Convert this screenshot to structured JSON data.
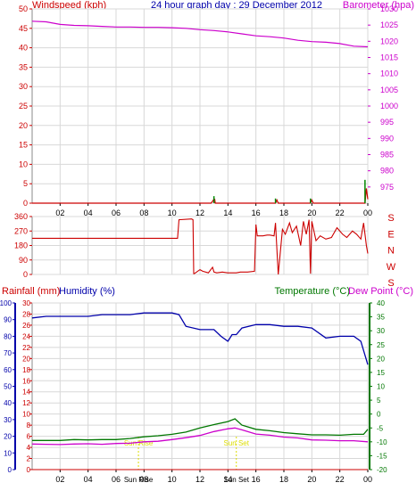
{
  "header": {
    "windspeed_label": "Windspeed (kph)",
    "date_title": "24 hour graph day : 29 December 2012",
    "barometer_label": "Barometer (hpa)"
  },
  "direction_panel": {
    "compass_labels": [
      "S",
      "E",
      "N",
      "W",
      "S"
    ]
  },
  "bottom_header": {
    "rainfall_label": "Rainfall (mm)",
    "humidity_label": "Humidity (%)",
    "temperature_label": "Temperature (°C)",
    "dewpoint_label": "Dew Point (°C)"
  },
  "sun_events": {
    "sunrise_label": "Sun Rise",
    "sunset_label": "Sun Set",
    "sunrise_hour": 7.6,
    "sunset_hour": 14.6,
    "axis_sunrise_label": "Sun Rise",
    "axis_sunset_label": "Sun Set"
  },
  "colors": {
    "border": "#888888",
    "grid": "#d8d8d8",
    "windspeed": "#cc0000",
    "barometer": "#cc00cc",
    "title": "#0000aa",
    "direction": "#cc0000",
    "rain": "#cc0000",
    "humidity": "#0000aa",
    "temperature": "#007700",
    "dewpoint": "#cc00cc",
    "gust": "#008800",
    "sun": "#dddd00"
  },
  "chart_data": [
    {
      "type": "line",
      "title": "24 hour graph day : 29 December 2012",
      "x_ticks": [
        "02",
        "04",
        "06",
        "08",
        "10",
        "12",
        "14",
        "16",
        "18",
        "20",
        "22",
        "00"
      ],
      "xlim": [
        0,
        24
      ],
      "ylabel_left": "Windspeed (kph)",
      "ylim_left": [
        0,
        50
      ],
      "yticks_left": [
        0,
        5,
        10,
        15,
        20,
        25,
        30,
        35,
        40,
        45,
        50
      ],
      "ylabel_right": "Barometer (hpa)",
      "ylim_right": [
        970,
        1030
      ],
      "yticks_right": [
        975,
        980,
        985,
        990,
        995,
        1000,
        1005,
        1010,
        1015,
        1020,
        1025,
        1030
      ],
      "series": [
        {
          "name": "Barometer (hpa)",
          "axis": "right",
          "x": [
            0,
            1,
            2,
            3,
            4,
            5,
            6,
            7,
            8,
            9,
            10,
            11,
            12,
            13,
            14,
            15,
            16,
            17,
            18,
            19,
            20,
            21,
            22,
            23,
            24
          ],
          "values": [
            1026.2,
            1026.0,
            1025.2,
            1024.9,
            1024.8,
            1024.6,
            1024.4,
            1024.4,
            1024.3,
            1024.3,
            1024.2,
            1024.0,
            1023.6,
            1023.3,
            1022.9,
            1022.3,
            1021.7,
            1021.4,
            1021.0,
            1020.3,
            1019.9,
            1019.7,
            1019.3,
            1018.5,
            1018.3
          ]
        },
        {
          "name": "Windspeed (kph)",
          "axis": "left",
          "x": [
            0,
            12.8,
            13.0,
            13.05,
            13.1,
            13.2,
            17.4,
            17.5,
            17.6,
            19.9,
            20.0,
            20.1,
            23.8,
            23.9,
            24
          ],
          "values": [
            0,
            0,
            1.0,
            1.0,
            0,
            0,
            0,
            0.8,
            0,
            0,
            0.8,
            0,
            0,
            3.8,
            1.0
          ]
        },
        {
          "name": "Gust",
          "axis": "left",
          "x": [
            13.0,
            13.1,
            17.4,
            17.5,
            19.9,
            20.0,
            23.8,
            23.9
          ],
          "values": [
            1.8,
            1.8,
            1.2,
            1.2,
            1.2,
            1.2,
            6.0,
            6.0
          ]
        }
      ]
    },
    {
      "type": "line",
      "x_ticks": [
        "02",
        "04",
        "06",
        "08",
        "10",
        "12",
        "14",
        "16",
        "18",
        "20",
        "22",
        "00"
      ],
      "xlim": [
        0,
        24
      ],
      "ylim": [
        0,
        360
      ],
      "yticks": [
        0,
        90,
        180,
        270,
        360
      ],
      "series": [
        {
          "name": "Wind direction",
          "x": [
            0,
            10.4,
            10.5,
            11.4,
            11.5,
            11.55,
            11.6,
            12.0,
            12.2,
            12.6,
            12.9,
            13.0,
            13.2,
            13.6,
            14.0,
            14.3,
            14.6,
            14.9,
            15.4,
            15.9,
            16.0,
            16.1,
            16.5,
            16.8,
            17.0,
            17.3,
            17.4,
            17.6,
            17.9,
            18.1,
            18.4,
            18.6,
            18.9,
            19.2,
            19.4,
            19.6,
            19.8,
            19.9,
            20.0,
            20.3,
            20.6,
            21.0,
            21.4,
            21.8,
            22.2,
            22.5,
            22.9,
            23.2,
            23.5,
            23.7,
            23.9,
            24.0
          ],
          "values": [
            225,
            225,
            340,
            345,
            340,
            5,
            5,
            30,
            20,
            10,
            45,
            15,
            10,
            15,
            10,
            10,
            10,
            15,
            15,
            20,
            310,
            240,
            240,
            245,
            245,
            240,
            320,
            0,
            280,
            250,
            320,
            260,
            300,
            180,
            330,
            250,
            340,
            5,
            330,
            210,
            240,
            220,
            230,
            290,
            250,
            230,
            270,
            250,
            220,
            320,
            180,
            130
          ]
        }
      ]
    },
    {
      "type": "line",
      "x_ticks": [
        "02",
        "04",
        "06",
        "08",
        "10",
        "12",
        "14",
        "16",
        "18",
        "20",
        "22",
        "00"
      ],
      "xlim": [
        0,
        24
      ],
      "ylabel_left_outer": "Rainfall (mm)",
      "ylim_rain": [
        0,
        30
      ],
      "yticks_rain": [
        0,
        2,
        4,
        6,
        8,
        10,
        12,
        14,
        16,
        18,
        20,
        22,
        24,
        26,
        28,
        30
      ],
      "ylabel_left": "Humidity (%)",
      "ylim_humidity": [
        0,
        100
      ],
      "yticks_humidity": [
        0,
        10,
        20,
        30,
        40,
        50,
        60,
        70,
        80,
        90,
        100
      ],
      "ylabel_right": "Temperature (°C) / Dew Point (°C)",
      "ylim_temp": [
        -20,
        40
      ],
      "yticks_temp": [
        -20,
        -15,
        -10,
        -5,
        0,
        5,
        10,
        15,
        20,
        25,
        30,
        35,
        40
      ],
      "series": [
        {
          "name": "Humidity (%)",
          "axis": "humidity",
          "x": [
            0,
            1,
            2,
            3,
            4,
            5,
            6,
            7,
            8,
            9,
            10,
            10.5,
            11,
            12,
            13,
            13.5,
            14,
            14.3,
            14.6,
            15,
            16,
            17,
            18,
            19,
            20,
            21,
            22,
            23,
            23.5,
            24
          ],
          "values": [
            91,
            92,
            92,
            92,
            92,
            93,
            93,
            93,
            94,
            94,
            94,
            93,
            86,
            84,
            84,
            80,
            77,
            81,
            81,
            85,
            87,
            87,
            86,
            86,
            85,
            79,
            80,
            80,
            77,
            63
          ]
        },
        {
          "name": "Temperature (°C)",
          "axis": "temp",
          "x": [
            0,
            1,
            2,
            3,
            4,
            5,
            6,
            7,
            8,
            9,
            10,
            11,
            12,
            13,
            14,
            14.5,
            15,
            16,
            17,
            18,
            19,
            20,
            21,
            22,
            23,
            23.7,
            24
          ],
          "values": [
            -9.5,
            -9.5,
            -9.5,
            -9.2,
            -9.3,
            -9.2,
            -9.2,
            -8.8,
            -8.2,
            -7.8,
            -7.3,
            -6.5,
            -5.0,
            -3.8,
            -2.7,
            -1.7,
            -4.0,
            -5.5,
            -6.0,
            -6.7,
            -7.1,
            -7.5,
            -7.5,
            -7.6,
            -7.3,
            -7.3,
            -5.5
          ]
        },
        {
          "name": "Dew Point (°C)",
          "axis": "temp",
          "x": [
            0,
            1,
            2,
            3,
            4,
            5,
            6,
            7,
            8,
            9,
            10,
            11,
            12,
            13,
            14,
            14.5,
            15,
            16,
            17,
            18,
            19,
            20,
            21,
            22,
            23,
            24
          ],
          "values": [
            -10.8,
            -10.9,
            -11.0,
            -10.8,
            -10.7,
            -10.9,
            -10.6,
            -10.5,
            -10.0,
            -9.8,
            -9.2,
            -8.5,
            -7.7,
            -6.3,
            -5.3,
            -5.0,
            -5.7,
            -7.2,
            -7.6,
            -8.3,
            -8.6,
            -9.3,
            -9.4,
            -9.6,
            -9.6,
            -10.0
          ]
        },
        {
          "name": "Rainfall (mm)",
          "axis": "rain",
          "x": [
            0,
            24
          ],
          "values": [
            0,
            0
          ]
        }
      ]
    }
  ]
}
